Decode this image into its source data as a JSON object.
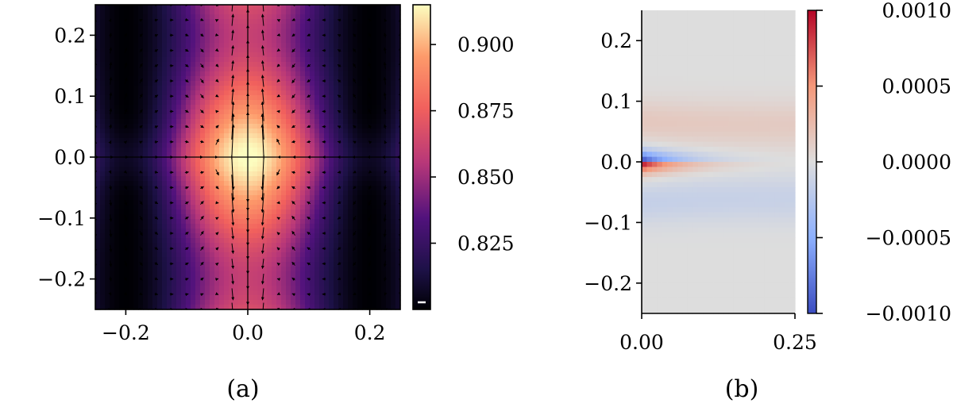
{
  "chart_data": [
    {
      "type": "heatmap",
      "caption": "(a)",
      "xlim": [
        -0.25,
        0.25
      ],
      "ylim": [
        -0.25,
        0.25
      ],
      "xticks": [
        -0.2,
        0.0,
        0.2
      ],
      "xtick_labels": [
        "−0.2",
        "0.0",
        "0.2"
      ],
      "yticks": [
        0.2,
        0.1,
        0.0,
        -0.1,
        -0.2
      ],
      "ytick_labels": [
        "0.2",
        "0.1",
        "0.0",
        "−0.1",
        "−0.2"
      ],
      "colormap": "magma",
      "colorbar": {
        "min": 0.8,
        "max": 0.915,
        "ticks": [
          0.9,
          0.875,
          0.85,
          0.825
        ],
        "tick_labels": [
          "0.900",
          "0.875",
          "0.850",
          "0.825"
        ]
      },
      "overlay": "quiver",
      "grid": false
    },
    {
      "type": "heatmap",
      "caption": "(b)",
      "xlim": [
        0.0,
        0.25
      ],
      "ylim": [
        -0.25,
        0.25
      ],
      "xticks": [
        0.0,
        0.25
      ],
      "xtick_labels": [
        "0.00",
        "0.25"
      ],
      "yticks": [
        0.2,
        0.1,
        0.0,
        -0.1,
        -0.2
      ],
      "ytick_labels": [
        "0.2",
        "0.1",
        "0.0",
        "−0.1",
        "−0.2"
      ],
      "colormap": "coolwarm",
      "colorbar": {
        "min": -0.001,
        "max": 0.001,
        "ticks": [
          0.001,
          0.0005,
          0.0,
          -0.0005,
          -0.001
        ],
        "tick_labels": [
          "0.0010",
          "0.0005",
          "0.0000",
          "−0.0005",
          "−0.0010"
        ]
      },
      "grid": false
    }
  ]
}
